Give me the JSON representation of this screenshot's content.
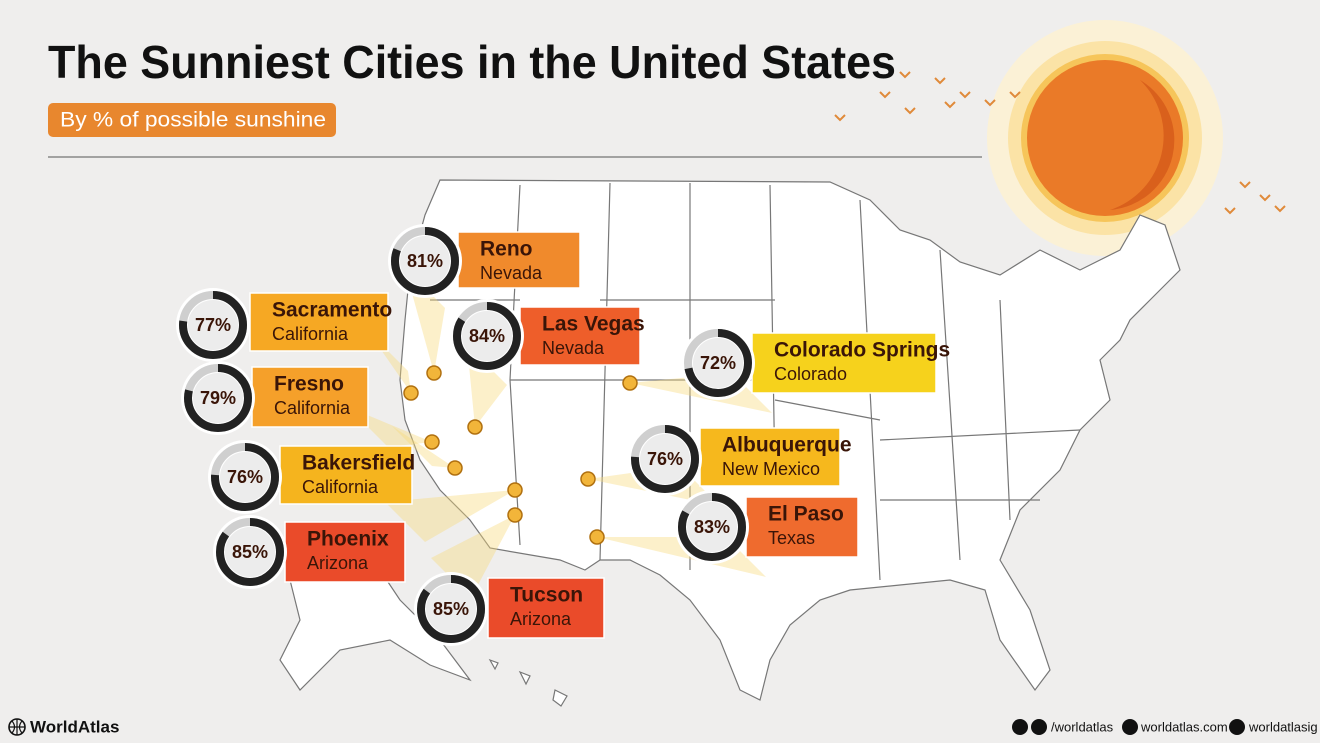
{
  "header": {
    "title": "The Sunniest Cities in the United States",
    "subtitle": "By % of possible sunshine"
  },
  "cities": [
    {
      "name": "Reno",
      "state": "Nevada",
      "pct": 81,
      "pct_label": "81%",
      "color": "#f08a2c"
    },
    {
      "name": "Sacramento",
      "state": "California",
      "pct": 77,
      "pct_label": "77%",
      "color": "#f6a823"
    },
    {
      "name": "Las Vegas",
      "state": "Nevada",
      "pct": 84,
      "pct_label": "84%",
      "color": "#ee5e2a"
    },
    {
      "name": "Colorado Springs",
      "state": "Colorado",
      "pct": 72,
      "pct_label": "72%",
      "color": "#f6d21c"
    },
    {
      "name": "Fresno",
      "state": "California",
      "pct": 79,
      "pct_label": "79%",
      "color": "#f5a02a"
    },
    {
      "name": "Albuquerque",
      "state": "New Mexico",
      "pct": 76,
      "pct_label": "76%",
      "color": "#f6b81d"
    },
    {
      "name": "Bakersfield",
      "state": "California",
      "pct": 76,
      "pct_label": "76%",
      "color": "#f5b41e"
    },
    {
      "name": "El Paso",
      "state": "Texas",
      "pct": 83,
      "pct_label": "83%",
      "color": "#ef6b2e"
    },
    {
      "name": "Phoenix",
      "state": "Arizona",
      "pct": 85,
      "pct_label": "85%",
      "color": "#ea4b2a"
    },
    {
      "name": "Tucson",
      "state": "Arizona",
      "pct": 85,
      "pct_label": "85%",
      "color": "#ea4b2a"
    }
  ],
  "footer": {
    "brand": "WorldAtlas",
    "facebook": "/worldatlas",
    "website": "worldatlas.com",
    "instagram": "worldatlasig"
  }
}
